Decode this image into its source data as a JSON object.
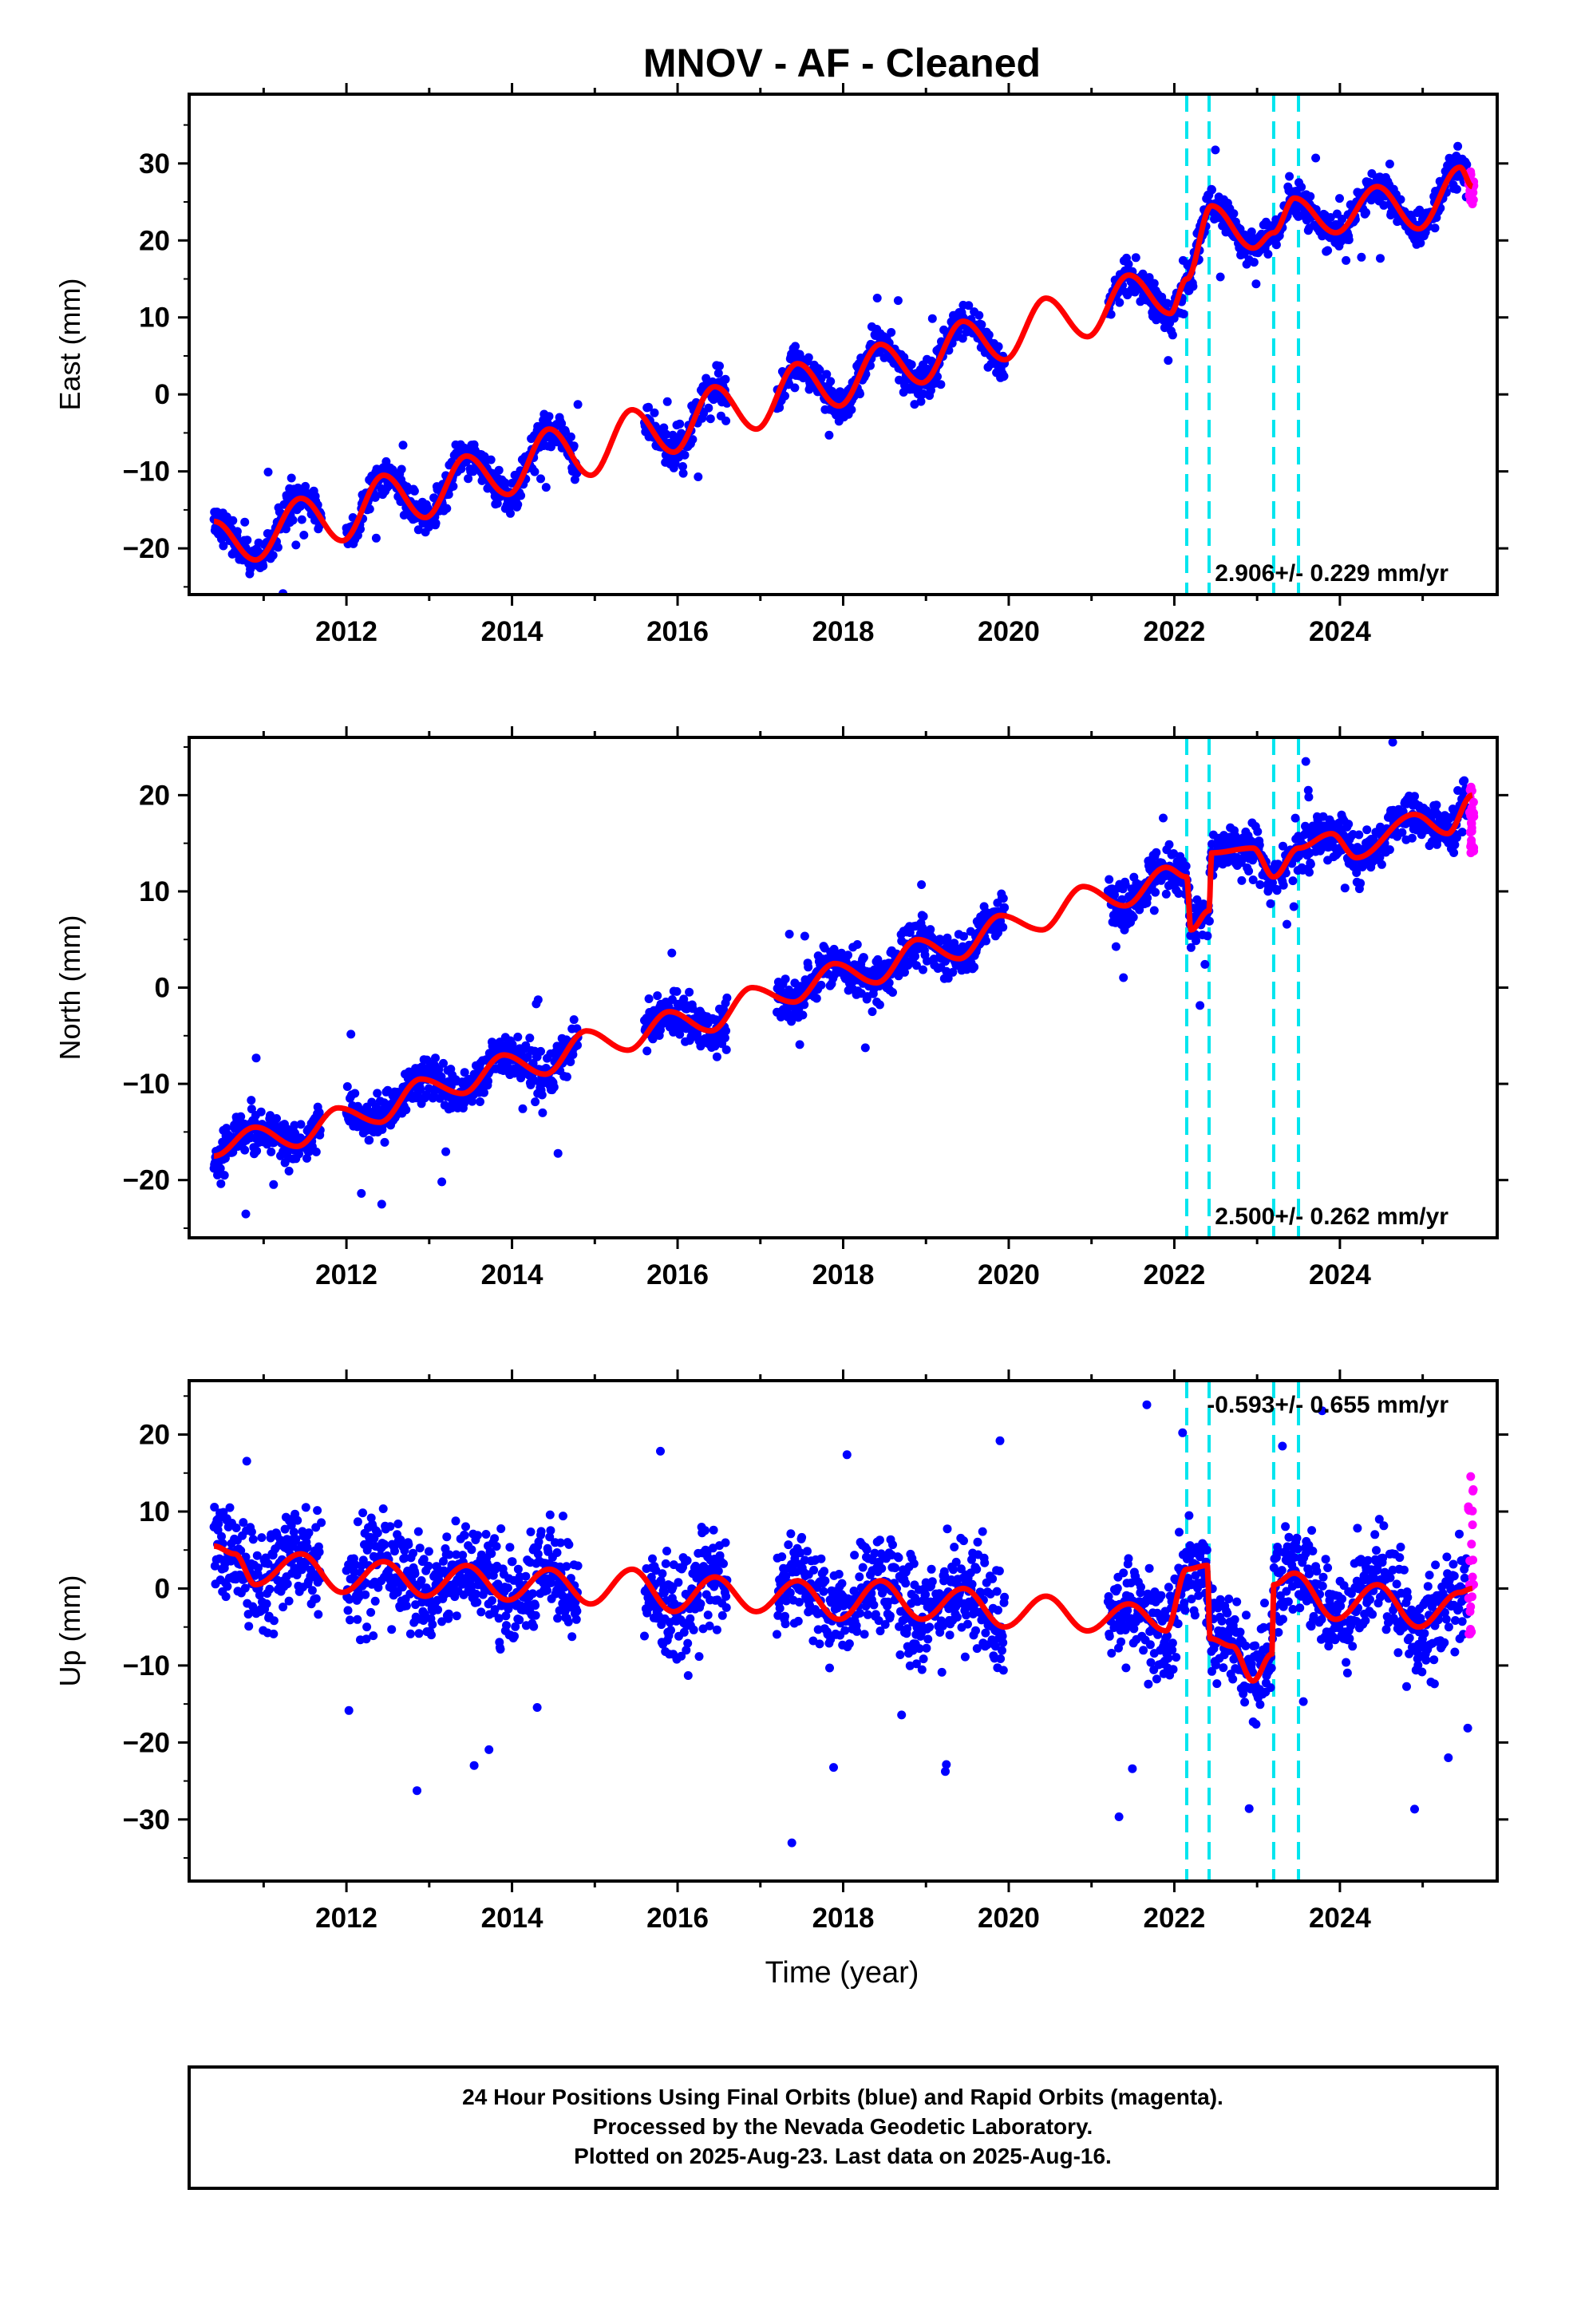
{
  "title": "MNOV  - AF - Cleaned",
  "colors": {
    "final": "#0000ff",
    "rapid": "#ff00ff",
    "model": "#ff0000",
    "offset": "#00e5ee",
    "frame": "#000000"
  },
  "chart_data": [
    {
      "type": "scatter",
      "ylabel": "East (mm)",
      "xlabel": "",
      "xlim": [
        2010.1,
        2025.9
      ],
      "ylim": [
        -26,
        39
      ],
      "yticks": [
        -20,
        -10,
        0,
        10,
        20,
        30
      ],
      "xticks": [
        2012,
        2014,
        2016,
        2018,
        2020,
        2022,
        2024
      ],
      "offsets": [
        2022.15,
        2022.42,
        2023.2,
        2023.5
      ],
      "rate_text": "2.906+/- 0.229 mm/yr",
      "rate_position": "bottom-right",
      "series": [
        {
          "role": "final",
          "segments": [
            [
              2010.4,
              2011.7
            ],
            [
              2012.0,
              2014.8
            ],
            [
              2015.6,
              2016.6
            ],
            [
              2017.2,
              2019.95
            ],
            [
              2021.2,
              2025.55
            ]
          ],
          "model_points": [
            [
              2010.4,
              -16.5
            ],
            [
              2010.9,
              -21.5
            ],
            [
              2011.45,
              -13.5
            ],
            [
              2011.95,
              -19
            ],
            [
              2012.45,
              -10.5
            ],
            [
              2012.95,
              -16
            ],
            [
              2013.45,
              -8
            ],
            [
              2013.95,
              -13
            ],
            [
              2014.45,
              -4.5
            ],
            [
              2014.95,
              -10.5
            ],
            [
              2015.45,
              -2
            ],
            [
              2015.95,
              -7.5
            ],
            [
              2016.45,
              1
            ],
            [
              2016.95,
              -4.5
            ],
            [
              2017.45,
              4
            ],
            [
              2017.95,
              -1.5
            ],
            [
              2018.45,
              6.5
            ],
            [
              2018.95,
              1.5
            ],
            [
              2019.45,
              9.5
            ],
            [
              2019.95,
              4.5
            ],
            [
              2020.45,
              12.5
            ],
            [
              2020.95,
              7.5
            ],
            [
              2021.45,
              15.5
            ],
            [
              2021.95,
              10.5
            ],
            [
              2022.15,
              15
            ],
            [
              2022.45,
              24.5
            ],
            [
              2022.95,
              19
            ],
            [
              2023.2,
              21
            ],
            [
              2023.45,
              25.5
            ],
            [
              2023.95,
              21
            ],
            [
              2024.45,
              27
            ],
            [
              2024.95,
              21.5
            ],
            [
              2025.45,
              29.5
            ],
            [
              2025.6,
              27
            ]
          ]
        },
        {
          "role": "rapid",
          "x": [
            2025.55,
            2025.62
          ],
          "y": [
            24,
            29
          ]
        }
      ]
    },
    {
      "type": "scatter",
      "ylabel": "North (mm)",
      "xlabel": "",
      "xlim": [
        2010.1,
        2025.9
      ],
      "ylim": [
        -26,
        26
      ],
      "yticks": [
        -20,
        -10,
        0,
        10,
        20
      ],
      "xticks": [
        2012,
        2014,
        2016,
        2018,
        2020,
        2022,
        2024
      ],
      "offsets": [
        2022.15,
        2022.42,
        2023.2,
        2023.5
      ],
      "rate_text": "2.500+/- 0.262 mm/yr",
      "rate_position": "bottom-right",
      "series": [
        {
          "role": "final",
          "segments": [
            [
              2010.4,
              2011.7
            ],
            [
              2012.0,
              2014.8
            ],
            [
              2015.6,
              2016.6
            ],
            [
              2017.2,
              2019.95
            ],
            [
              2021.2,
              2025.55
            ]
          ],
          "model_points": [
            [
              2010.4,
              -17.5
            ],
            [
              2010.9,
              -14.5
            ],
            [
              2011.4,
              -16.5
            ],
            [
              2011.9,
              -12.5
            ],
            [
              2012.4,
              -14
            ],
            [
              2012.9,
              -9.5
            ],
            [
              2013.4,
              -11
            ],
            [
              2013.9,
              -7
            ],
            [
              2014.4,
              -9
            ],
            [
              2014.9,
              -4.5
            ],
            [
              2015.4,
              -6.5
            ],
            [
              2015.9,
              -2.5
            ],
            [
              2016.4,
              -4.5
            ],
            [
              2016.9,
              0
            ],
            [
              2017.4,
              -1.5
            ],
            [
              2017.9,
              2.5
            ],
            [
              2018.4,
              0.5
            ],
            [
              2018.9,
              5
            ],
            [
              2019.4,
              3
            ],
            [
              2019.9,
              7.5
            ],
            [
              2020.4,
              6
            ],
            [
              2020.9,
              10.5
            ],
            [
              2021.4,
              8.5
            ],
            [
              2021.9,
              12.5
            ],
            [
              2022.15,
              11.5
            ],
            [
              2022.2,
              6
            ],
            [
              2022.42,
              8
            ],
            [
              2022.45,
              14
            ],
            [
              2022.95,
              14.5
            ],
            [
              2023.2,
              11.5
            ],
            [
              2023.5,
              14.5
            ],
            [
              2023.9,
              16
            ],
            [
              2024.2,
              13.5
            ],
            [
              2024.9,
              18
            ],
            [
              2025.3,
              16
            ],
            [
              2025.6,
              20
            ]
          ]
        },
        {
          "role": "rapid",
          "x": [
            2025.55,
            2025.62
          ],
          "y": [
            14,
            21
          ]
        }
      ]
    },
    {
      "type": "scatter",
      "ylabel": "Up (mm)",
      "xlabel": "Time (year)",
      "xlim": [
        2010.1,
        2025.9
      ],
      "ylim": [
        -38,
        27
      ],
      "yticks": [
        -30,
        -20,
        -10,
        0,
        10,
        20
      ],
      "xticks": [
        2012,
        2014,
        2016,
        2018,
        2020,
        2022,
        2024
      ],
      "offsets": [
        2022.15,
        2022.42,
        2023.2,
        2023.5
      ],
      "rate_text": "-0.593+/- 0.655 mm/yr",
      "rate_position": "top-right",
      "series": [
        {
          "role": "final",
          "segments": [
            [
              2010.4,
              2011.7
            ],
            [
              2012.0,
              2014.8
            ],
            [
              2015.6,
              2016.6
            ],
            [
              2017.2,
              2019.95
            ],
            [
              2021.2,
              2025.55
            ]
          ],
          "model_points": [
            [
              2010.4,
              5.5
            ],
            [
              2010.65,
              4.5
            ],
            [
              2010.9,
              0.5
            ],
            [
              2011.45,
              4.5
            ],
            [
              2011.95,
              -0.5
            ],
            [
              2012.45,
              3.5
            ],
            [
              2012.95,
              -1
            ],
            [
              2013.45,
              3
            ],
            [
              2013.95,
              -1.5
            ],
            [
              2014.45,
              2.5
            ],
            [
              2014.95,
              -2
            ],
            [
              2015.45,
              2.5
            ],
            [
              2015.95,
              -3
            ],
            [
              2016.45,
              1.5
            ],
            [
              2016.95,
              -3
            ],
            [
              2017.45,
              1
            ],
            [
              2017.95,
              -4
            ],
            [
              2018.45,
              1
            ],
            [
              2018.95,
              -4
            ],
            [
              2019.45,
              0
            ],
            [
              2019.95,
              -5
            ],
            [
              2020.45,
              -1
            ],
            [
              2020.95,
              -5.5
            ],
            [
              2021.45,
              -2
            ],
            [
              2021.9,
              -5.5
            ],
            [
              2022.15,
              2.5
            ],
            [
              2022.4,
              3
            ],
            [
              2022.43,
              -6.5
            ],
            [
              2022.7,
              -7.5
            ],
            [
              2022.95,
              -12
            ],
            [
              2023.18,
              -8.5
            ],
            [
              2023.2,
              0.5
            ],
            [
              2023.45,
              2
            ],
            [
              2023.95,
              -4
            ],
            [
              2024.45,
              0.5
            ],
            [
              2024.95,
              -5
            ],
            [
              2025.45,
              -0.5
            ],
            [
              2025.6,
              0
            ]
          ]
        },
        {
          "role": "rapid",
          "x": [
            2025.55,
            2025.62
          ],
          "y": [
            -8,
            15
          ]
        }
      ]
    }
  ],
  "footer": {
    "line1": "24 Hour Positions Using Final Orbits (blue) and Rapid Orbits (magenta).",
    "line2": "Processed by the Nevada Geodetic Laboratory.",
    "line3": "Plotted on 2025-Aug-23. Last data on 2025-Aug-16."
  }
}
